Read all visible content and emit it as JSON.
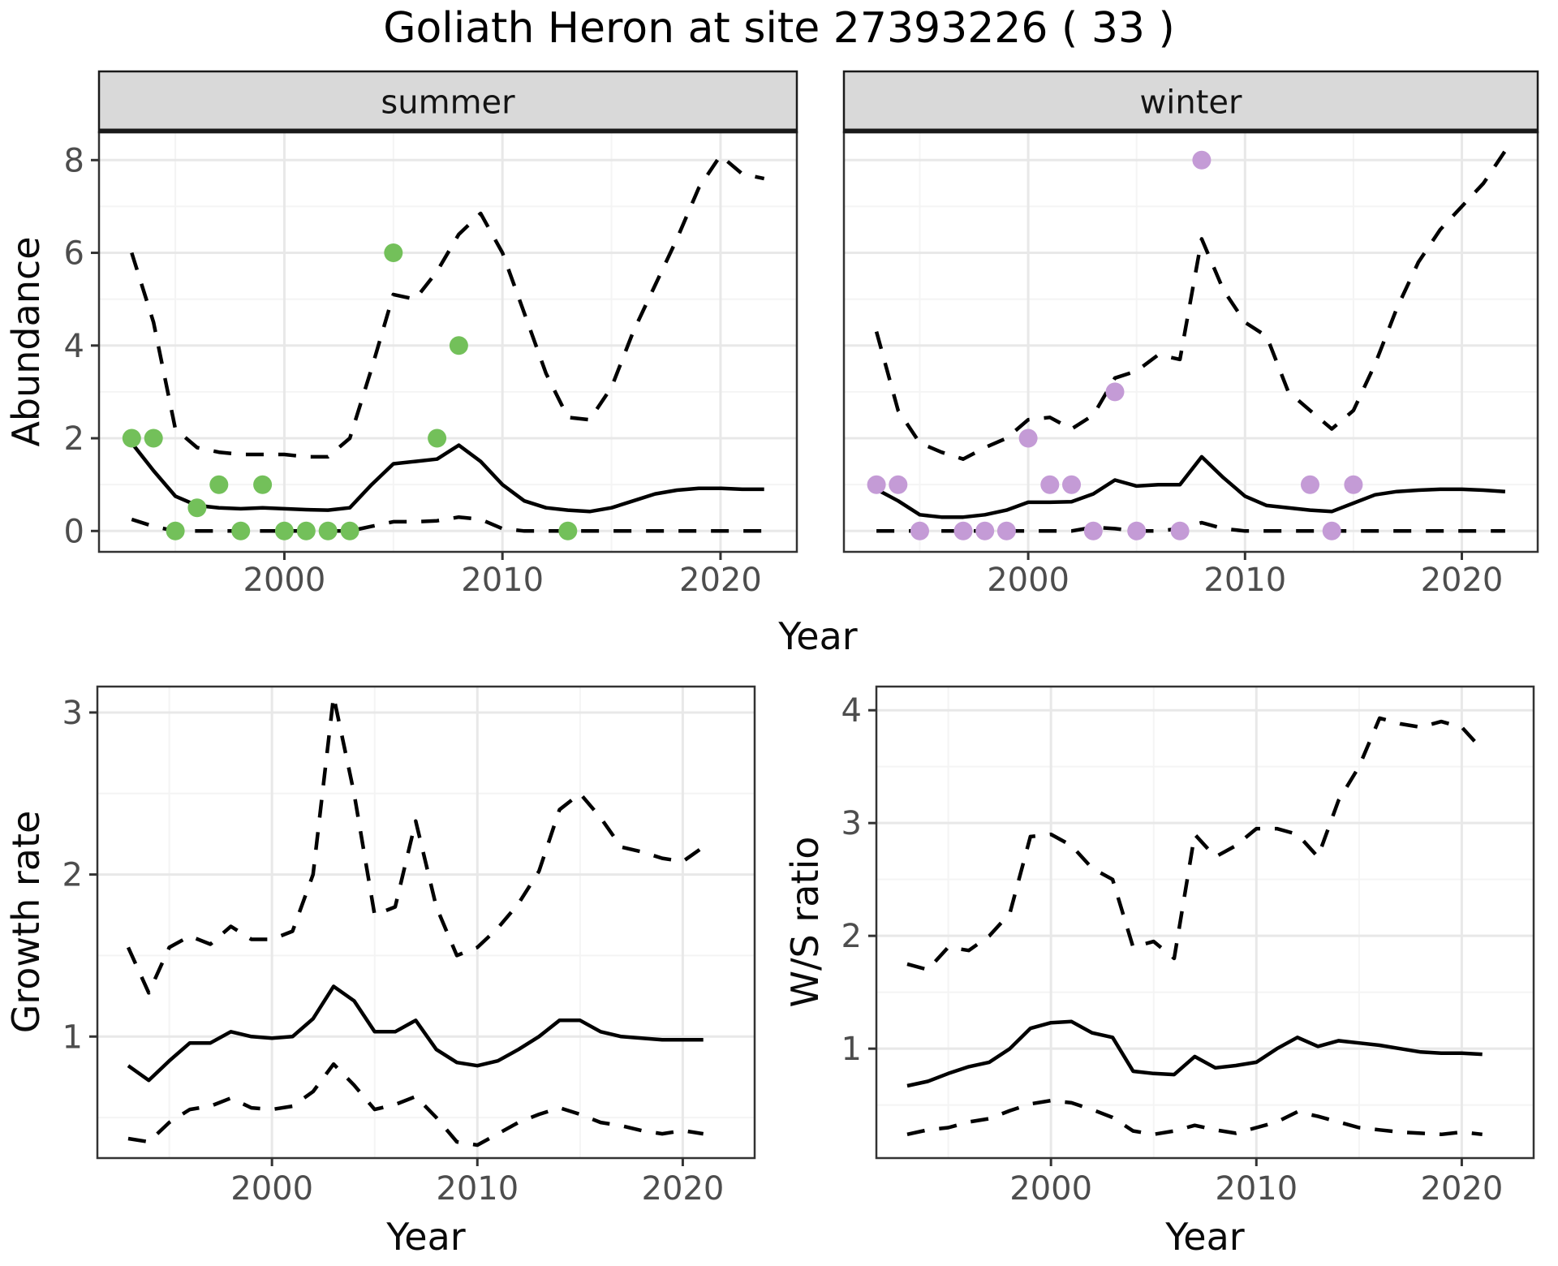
{
  "title": "Goliath Heron at site 27393226 ( 33 )",
  "colors": {
    "summer_points": "#73C05A",
    "winter_points": "#C49BD6",
    "line": "#000000",
    "strip_bg": "#D9D9D9",
    "strip_border": "#1a1a1a",
    "panel_border": "#333333",
    "grid_major": "#E8E8E8",
    "grid_minor": "#F4F4F4",
    "tick_text": "#4d4d4d"
  },
  "facets": [
    "summer",
    "winter"
  ],
  "axes": {
    "top_y": "Abundance",
    "top_x": "Year",
    "bottom_left_y": "Growth rate",
    "bottom_left_x": "Year",
    "bottom_right_y": "W/S ratio",
    "bottom_right_x": "Year"
  },
  "chart_data": [
    {
      "id": "abundance_summer",
      "type": "line",
      "facet": "summer",
      "xlabel": "Year",
      "ylabel": "Abundance",
      "xlim": [
        1991.5,
        2023.5
      ],
      "ylim": [
        -0.45,
        8.6
      ],
      "x_ticks": [
        2000,
        2010,
        2020
      ],
      "x_tick_labels": [
        "2000",
        "2010",
        "2020"
      ],
      "x_minor": [
        1995,
        2005,
        2015
      ],
      "y_ticks": [
        0,
        2,
        4,
        6,
        8
      ],
      "y_tick_labels": [
        "0",
        "2",
        "4",
        "6",
        "8"
      ],
      "y_minor": [
        1,
        3,
        5,
        7
      ],
      "points": {
        "name": "observed-counts-summer",
        "color_key": "summer_points",
        "data": [
          [
            1993,
            2
          ],
          [
            1994,
            2
          ],
          [
            1995,
            0
          ],
          [
            1996,
            0.5
          ],
          [
            1997,
            1
          ],
          [
            1998,
            0
          ],
          [
            1999,
            1
          ],
          [
            2000,
            0
          ],
          [
            2001,
            0
          ],
          [
            2002,
            0
          ],
          [
            2003,
            0
          ],
          [
            2005,
            6
          ],
          [
            2007,
            2
          ],
          [
            2008,
            4
          ],
          [
            2013,
            0
          ]
        ]
      },
      "series": [
        {
          "name": "median",
          "style": "solid",
          "x": [
            1993,
            1994,
            1995,
            1996,
            1997,
            1998,
            1999,
            2000,
            2001,
            2002,
            2003,
            2004,
            2005,
            2006,
            2007,
            2008,
            2009,
            2010,
            2011,
            2012,
            2013,
            2014,
            2015,
            2016,
            2017,
            2018,
            2019,
            2020,
            2021,
            2022
          ],
          "y": [
            1.9,
            1.3,
            0.75,
            0.55,
            0.5,
            0.48,
            0.5,
            0.48,
            0.46,
            0.45,
            0.5,
            1.0,
            1.45,
            1.5,
            1.55,
            1.85,
            1.5,
            1.0,
            0.65,
            0.5,
            0.45,
            0.42,
            0.5,
            0.65,
            0.8,
            0.88,
            0.92,
            0.92,
            0.9,
            0.9
          ]
        },
        {
          "name": "upper_ci",
          "style": "dashed",
          "x": [
            1993,
            1994,
            1995,
            1996,
            1997,
            1998,
            1999,
            2000,
            2001,
            2002,
            2003,
            2004,
            2005,
            2006,
            2007,
            2008,
            2009,
            2010,
            2011,
            2012,
            2013,
            2014,
            2015,
            2016,
            2017,
            2018,
            2019,
            2020,
            2021,
            2022
          ],
          "y": [
            6.0,
            4.5,
            2.2,
            1.8,
            1.7,
            1.65,
            1.65,
            1.65,
            1.6,
            1.6,
            2.0,
            3.5,
            5.1,
            5.0,
            5.6,
            6.4,
            6.85,
            6.0,
            4.7,
            3.4,
            2.45,
            2.4,
            3.1,
            4.3,
            5.3,
            6.3,
            7.4,
            8.1,
            7.7,
            7.6
          ]
        },
        {
          "name": "lower_ci",
          "style": "dashed",
          "x": [
            1993,
            1994,
            1995,
            1996,
            1997,
            1998,
            1999,
            2000,
            2001,
            2002,
            2003,
            2004,
            2005,
            2006,
            2007,
            2008,
            2009,
            2010,
            2011,
            2012,
            2013,
            2014,
            2015,
            2016,
            2017,
            2018,
            2019,
            2020,
            2021,
            2022
          ],
          "y": [
            0.25,
            0.1,
            0,
            0,
            0,
            0,
            0,
            0,
            0,
            0,
            0,
            0.1,
            0.2,
            0.2,
            0.22,
            0.3,
            0.25,
            0.05,
            0,
            0,
            0,
            0,
            0,
            0,
            0,
            0,
            0,
            0,
            0,
            0
          ]
        }
      ]
    },
    {
      "id": "abundance_winter",
      "type": "line",
      "facet": "winter",
      "xlabel": "Year",
      "ylabel": "Abundance",
      "xlim": [
        1991.5,
        2023.5
      ],
      "ylim": [
        -0.45,
        8.6
      ],
      "x_ticks": [
        2000,
        2010,
        2020
      ],
      "x_tick_labels": [
        "2000",
        "2010",
        "2020"
      ],
      "x_minor": [
        1995,
        2005,
        2015
      ],
      "y_ticks": [
        0,
        2,
        4,
        6,
        8
      ],
      "y_tick_labels": [],
      "y_minor": [
        1,
        3,
        5,
        7
      ],
      "points": {
        "name": "observed-counts-winter",
        "color_key": "winter_points",
        "data": [
          [
            1993,
            1
          ],
          [
            1994,
            1
          ],
          [
            1995,
            0
          ],
          [
            1997,
            0
          ],
          [
            1998,
            0
          ],
          [
            1999,
            0
          ],
          [
            2000,
            2
          ],
          [
            2001,
            1
          ],
          [
            2002,
            1
          ],
          [
            2003,
            0
          ],
          [
            2004,
            3
          ],
          [
            2005,
            0
          ],
          [
            2007,
            0
          ],
          [
            2008,
            8
          ],
          [
            2013,
            1
          ],
          [
            2014,
            0
          ],
          [
            2015,
            1
          ]
        ]
      },
      "series": [
        {
          "name": "median",
          "style": "solid",
          "x": [
            1993,
            1994,
            1995,
            1996,
            1997,
            1998,
            1999,
            2000,
            2001,
            2002,
            2003,
            2004,
            2005,
            2006,
            2007,
            2008,
            2009,
            2010,
            2011,
            2012,
            2013,
            2014,
            2015,
            2016,
            2017,
            2018,
            2019,
            2020,
            2021,
            2022
          ],
          "y": [
            0.9,
            0.65,
            0.35,
            0.3,
            0.3,
            0.35,
            0.45,
            0.62,
            0.62,
            0.63,
            0.8,
            1.1,
            0.97,
            1.0,
            1.0,
            1.6,
            1.15,
            0.75,
            0.55,
            0.5,
            0.45,
            0.42,
            0.6,
            0.78,
            0.85,
            0.88,
            0.9,
            0.9,
            0.88,
            0.85
          ]
        },
        {
          "name": "upper_ci",
          "style": "dashed",
          "x": [
            1993,
            1994,
            1995,
            1996,
            1997,
            1998,
            1999,
            2000,
            2001,
            2002,
            2003,
            2004,
            2005,
            2006,
            2007,
            2008,
            2009,
            2010,
            2011,
            2012,
            2013,
            2014,
            2015,
            2016,
            2017,
            2018,
            2019,
            2020,
            2021,
            2022
          ],
          "y": [
            4.3,
            2.6,
            1.9,
            1.7,
            1.55,
            1.8,
            2.0,
            2.4,
            2.45,
            2.2,
            2.5,
            3.3,
            3.45,
            3.8,
            3.7,
            6.3,
            5.2,
            4.5,
            4.2,
            3.0,
            2.6,
            2.2,
            2.6,
            3.6,
            4.8,
            5.8,
            6.5,
            7.0,
            7.5,
            8.2
          ]
        },
        {
          "name": "lower_ci",
          "style": "dashed",
          "x": [
            1993,
            1994,
            1995,
            1996,
            1997,
            1998,
            1999,
            2000,
            2001,
            2002,
            2003,
            2004,
            2005,
            2006,
            2007,
            2008,
            2009,
            2010,
            2011,
            2012,
            2013,
            2014,
            2015,
            2016,
            2017,
            2018,
            2019,
            2020,
            2021,
            2022
          ],
          "y": [
            0,
            0,
            0,
            0,
            0,
            0,
            0,
            0,
            0,
            0,
            0.08,
            0.05,
            0,
            0,
            0.05,
            0.18,
            0.05,
            0,
            0,
            0,
            0,
            0,
            0,
            0,
            0,
            0,
            0,
            0,
            0,
            0
          ]
        }
      ]
    },
    {
      "id": "growth_rate",
      "type": "line",
      "xlabel": "Year",
      "ylabel": "Growth rate",
      "xlim": [
        1991.5,
        2023.5
      ],
      "ylim": [
        0.25,
        3.16
      ],
      "x_ticks": [
        2000,
        2010,
        2020
      ],
      "x_tick_labels": [
        "2000",
        "2010",
        "2020"
      ],
      "x_minor": [
        1995,
        2005,
        2015
      ],
      "y_ticks": [
        1,
        2,
        3
      ],
      "y_tick_labels": [
        "1",
        "2",
        "3"
      ],
      "y_minor": [
        0.5,
        1.5,
        2.5
      ],
      "series": [
        {
          "name": "median",
          "style": "solid",
          "x": [
            1993,
            1994,
            1995,
            1996,
            1997,
            1998,
            1999,
            2000,
            2001,
            2002,
            2003,
            2004,
            2005,
            2006,
            2007,
            2008,
            2009,
            2010,
            2011,
            2012,
            2013,
            2014,
            2015,
            2016,
            2017,
            2018,
            2019,
            2020,
            2021
          ],
          "y": [
            0.82,
            0.73,
            0.85,
            0.96,
            0.96,
            1.03,
            1.0,
            0.99,
            1.0,
            1.11,
            1.31,
            1.22,
            1.03,
            1.03,
            1.1,
            0.92,
            0.84,
            0.82,
            0.85,
            0.92,
            1.0,
            1.1,
            1.1,
            1.03,
            1.0,
            0.99,
            0.98,
            0.98,
            0.98
          ]
        },
        {
          "name": "upper_ci",
          "style": "dashed",
          "x": [
            1993,
            1994,
            1995,
            1996,
            1997,
            1998,
            1999,
            2000,
            2001,
            2002,
            2003,
            2004,
            2005,
            2006,
            2007,
            2008,
            2009,
            2010,
            2011,
            2012,
            2013,
            2014,
            2015,
            2016,
            2017,
            2018,
            2019,
            2020,
            2021
          ],
          "y": [
            1.55,
            1.27,
            1.55,
            1.62,
            1.57,
            1.68,
            1.6,
            1.6,
            1.65,
            2.0,
            3.1,
            2.5,
            1.75,
            1.8,
            2.33,
            1.8,
            1.5,
            1.55,
            1.67,
            1.82,
            2.02,
            2.4,
            2.5,
            2.35,
            2.17,
            2.14,
            2.1,
            2.08,
            2.17
          ]
        },
        {
          "name": "lower_ci",
          "style": "dashed",
          "x": [
            1993,
            1994,
            1995,
            1996,
            1997,
            1998,
            1999,
            2000,
            2001,
            2002,
            2003,
            2004,
            2005,
            2006,
            2007,
            2008,
            2009,
            2010,
            2011,
            2012,
            2013,
            2014,
            2015,
            2016,
            2017,
            2018,
            2019,
            2020,
            2021
          ],
          "y": [
            0.37,
            0.35,
            0.47,
            0.55,
            0.57,
            0.62,
            0.56,
            0.55,
            0.57,
            0.66,
            0.83,
            0.7,
            0.55,
            0.58,
            0.63,
            0.5,
            0.35,
            0.33,
            0.4,
            0.47,
            0.52,
            0.56,
            0.52,
            0.47,
            0.45,
            0.42,
            0.4,
            0.42,
            0.4
          ]
        }
      ]
    },
    {
      "id": "ws_ratio",
      "type": "line",
      "xlabel": "Year",
      "ylabel": "W/S ratio",
      "xlim": [
        1991.5,
        2023.5
      ],
      "ylim": [
        0.03,
        4.21
      ],
      "x_ticks": [
        2000,
        2010,
        2020
      ],
      "x_tick_labels": [
        "2000",
        "2010",
        "2020"
      ],
      "x_minor": [
        1995,
        2005,
        2015
      ],
      "y_ticks": [
        1,
        2,
        3,
        4
      ],
      "y_tick_labels": [
        "1",
        "2",
        "3",
        "4"
      ],
      "y_minor": [
        0.5,
        1.5,
        2.5,
        3.5
      ],
      "series": [
        {
          "name": "median",
          "style": "solid",
          "x": [
            1993,
            1994,
            1995,
            1996,
            1997,
            1998,
            1999,
            2000,
            2001,
            2002,
            2003,
            2004,
            2005,
            2006,
            2007,
            2008,
            2009,
            2010,
            2011,
            2012,
            2013,
            2014,
            2015,
            2016,
            2017,
            2018,
            2019,
            2020,
            2021
          ],
          "y": [
            0.67,
            0.71,
            0.78,
            0.84,
            0.88,
            1.0,
            1.18,
            1.23,
            1.24,
            1.14,
            1.1,
            0.8,
            0.78,
            0.77,
            0.93,
            0.83,
            0.85,
            0.88,
            1.0,
            1.1,
            1.02,
            1.07,
            1.05,
            1.03,
            1.0,
            0.97,
            0.96,
            0.96,
            0.95
          ]
        },
        {
          "name": "upper_ci",
          "style": "dashed",
          "x": [
            1993,
            1994,
            1995,
            1996,
            1997,
            1998,
            1999,
            2000,
            2001,
            2002,
            2003,
            2004,
            2005,
            2006,
            2007,
            2008,
            2009,
            2010,
            2011,
            2012,
            2013,
            2014,
            2015,
            2016,
            2017,
            2018,
            2019,
            2020,
            2021
          ],
          "y": [
            1.75,
            1.7,
            1.9,
            1.87,
            2.0,
            2.2,
            2.88,
            2.9,
            2.8,
            2.6,
            2.5,
            1.9,
            1.95,
            1.8,
            2.9,
            2.7,
            2.8,
            2.95,
            2.95,
            2.9,
            2.7,
            3.2,
            3.5,
            3.93,
            3.88,
            3.85,
            3.9,
            3.85,
            3.65
          ]
        },
        {
          "name": "lower_ci",
          "style": "dashed",
          "x": [
            1993,
            1994,
            1995,
            1996,
            1997,
            1998,
            1999,
            2000,
            2001,
            2002,
            2003,
            2004,
            2005,
            2006,
            2007,
            2008,
            2009,
            2010,
            2011,
            2012,
            2013,
            2014,
            2015,
            2016,
            2017,
            2018,
            2019,
            2020,
            2021
          ],
          "y": [
            0.24,
            0.28,
            0.3,
            0.35,
            0.38,
            0.45,
            0.51,
            0.54,
            0.52,
            0.46,
            0.39,
            0.27,
            0.24,
            0.27,
            0.32,
            0.28,
            0.25,
            0.3,
            0.35,
            0.44,
            0.4,
            0.35,
            0.3,
            0.28,
            0.26,
            0.25,
            0.24,
            0.26,
            0.24
          ]
        }
      ]
    }
  ]
}
